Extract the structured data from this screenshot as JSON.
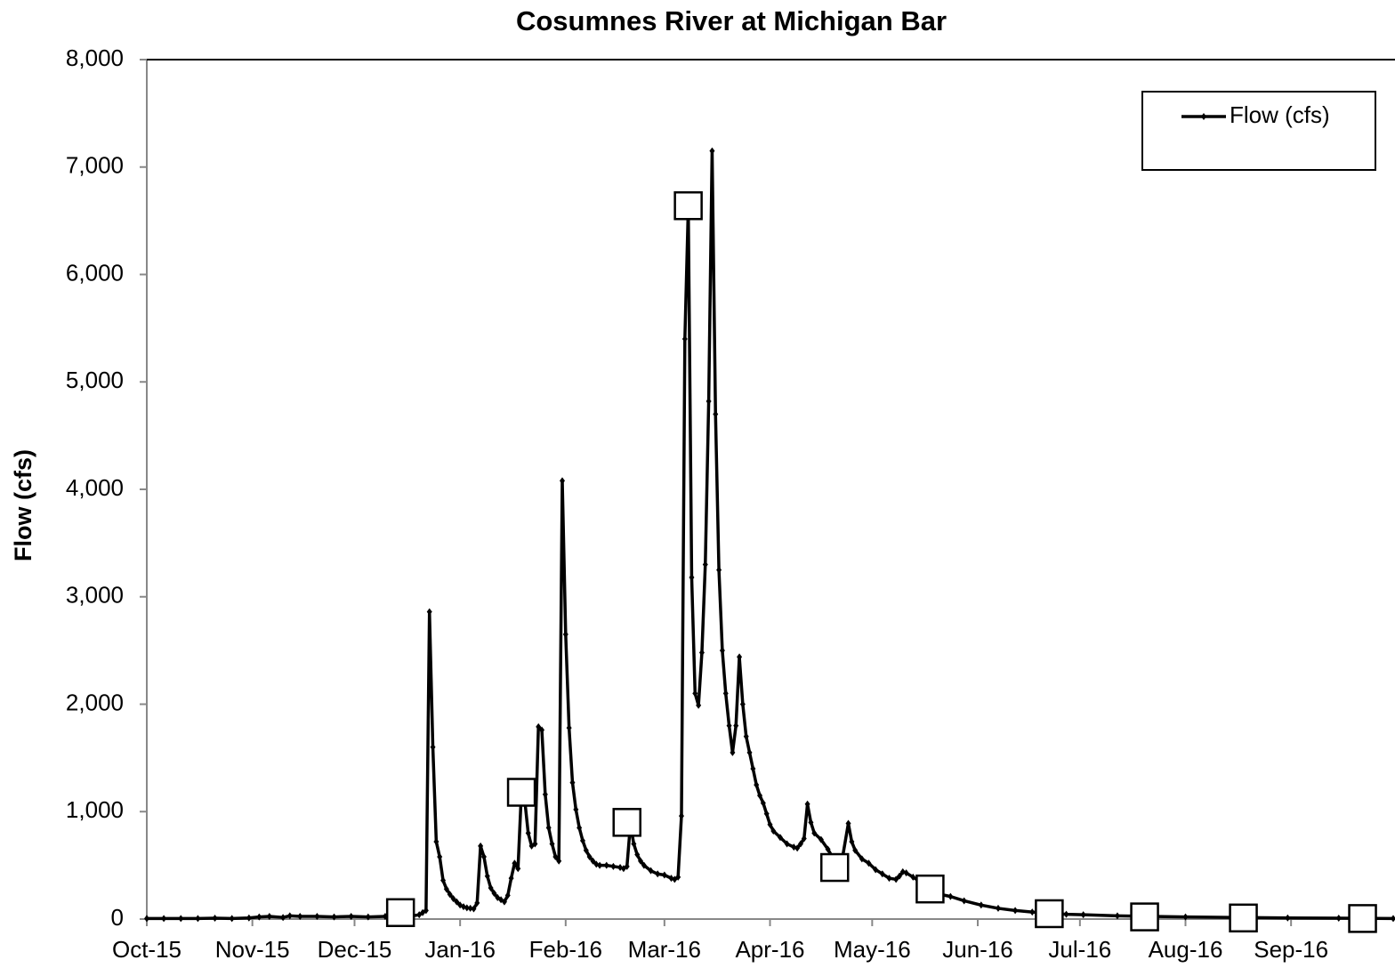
{
  "chart_data": {
    "type": "line",
    "title": "Cosumnes River at Michigan Bar",
    "y_label": "Flow (cfs)",
    "xlim": [
      0,
      366
    ],
    "xticks": [
      {
        "value": 0,
        "label": "Oct-15"
      },
      {
        "value": 31,
        "label": "Nov-15"
      },
      {
        "value": 61,
        "label": "Dec-15"
      },
      {
        "value": 92,
        "label": "Jan-16"
      },
      {
        "value": 123,
        "label": "Feb-16"
      },
      {
        "value": 152,
        "label": "Mar-16"
      },
      {
        "value": 183,
        "label": "Apr-16"
      },
      {
        "value": 213,
        "label": "May-16"
      },
      {
        "value": 244,
        "label": "Jun-16"
      },
      {
        "value": 274,
        "label": "Jul-16"
      },
      {
        "value": 305,
        "label": "Aug-16"
      },
      {
        "value": 336,
        "label": "Sep-16"
      }
    ],
    "ylim": [
      0,
      8000
    ],
    "yticks": [
      {
        "value": 0,
        "label": "0"
      },
      {
        "value": 1000,
        "label": "1,000"
      },
      {
        "value": 2000,
        "label": "2,000"
      },
      {
        "value": 3000,
        "label": "3,000"
      },
      {
        "value": 4000,
        "label": "4,000"
      },
      {
        "value": 5000,
        "label": "5,000"
      },
      {
        "value": 6000,
        "label": "6,000"
      },
      {
        "value": 7000,
        "label": "7,000"
      },
      {
        "value": 8000,
        "label": "8,000"
      }
    ],
    "legend": "upper right",
    "series": [
      {
        "name": "Flow (cfs)",
        "color": "#000000",
        "marker": "diamond",
        "x": [
          0,
          5,
          10,
          15,
          20,
          25,
          30,
          33,
          36,
          40,
          42,
          45,
          50,
          55,
          60,
          65,
          70,
          75,
          78,
          80,
          81,
          82,
          83,
          84,
          85,
          86,
          87,
          88,
          89,
          90,
          91,
          92,
          93,
          94,
          95,
          96,
          97,
          98,
          99,
          100,
          101,
          102,
          103,
          104,
          105,
          106,
          107,
          108,
          109,
          110,
          111,
          112,
          113,
          114,
          115,
          116,
          117,
          118,
          119,
          120,
          121,
          122,
          123,
          124,
          125,
          126,
          127,
          128,
          129,
          130,
          131,
          132,
          133,
          135,
          137,
          139,
          140,
          141,
          142,
          143,
          144,
          145,
          146,
          148,
          150,
          152,
          154,
          155,
          156,
          157,
          158,
          159,
          160,
          161,
          162,
          163,
          164,
          165,
          166,
          167,
          168,
          169,
          170,
          171,
          172,
          173,
          174,
          175,
          176,
          177,
          178,
          179,
          180,
          181,
          182,
          183,
          184,
          186,
          188,
          190,
          191,
          192,
          193,
          194,
          195,
          196,
          198,
          200,
          202,
          203,
          204,
          206,
          207,
          208,
          210,
          212,
          214,
          216,
          218,
          220,
          221,
          222,
          223,
          225,
          227,
          230,
          233,
          236,
          240,
          245,
          250,
          255,
          260,
          265,
          270,
          275,
          285,
          295,
          305,
          320,
          335,
          350,
          366
        ],
        "values": [
          5,
          5,
          5,
          5,
          8,
          5,
          10,
          20,
          25,
          15,
          30,
          25,
          25,
          20,
          25,
          20,
          25,
          30,
          30,
          40,
          60,
          80,
          2860,
          1600,
          720,
          580,
          360,
          280,
          230,
          190,
          160,
          130,
          115,
          105,
          100,
          95,
          150,
          680,
          580,
          400,
          290,
          240,
          200,
          180,
          160,
          220,
          380,
          520,
          470,
          1180,
          1100,
          800,
          680,
          700,
          1790,
          1760,
          1160,
          850,
          700,
          580,
          540,
          4080,
          2650,
          1780,
          1270,
          1020,
          850,
          730,
          640,
          580,
          540,
          510,
          500,
          500,
          490,
          480,
          470,
          490,
          880,
          700,
          600,
          540,
          500,
          450,
          420,
          410,
          380,
          370,
          390,
          960,
          5400,
          6620,
          3180,
          2100,
          1990,
          2480,
          3300,
          4820,
          7150,
          4700,
          3250,
          2500,
          2100,
          1800,
          1550,
          1800,
          2440,
          2000,
          1700,
          1550,
          1400,
          1250,
          1150,
          1080,
          980,
          880,
          820,
          760,
          700,
          670,
          660,
          700,
          750,
          1070,
          900,
          800,
          740,
          650,
          540,
          500,
          520,
          890,
          720,
          640,
          560,
          520,
          460,
          420,
          380,
          370,
          400,
          440,
          430,
          390,
          350,
          280,
          230,
          210,
          170,
          130,
          100,
          80,
          65,
          55,
          45,
          40,
          30,
          25,
          20,
          15,
          10,
          8,
          5
        ]
      },
      {
        "color": "#000000",
        "marker": "square",
        "x": [
          74.5,
          110,
          141,
          159,
          202,
          230,
          265,
          293,
          322,
          357
        ],
        "values": [
          60,
          1180,
          900,
          6640,
          480,
          280,
          50,
          20,
          10,
          5
        ]
      }
    ]
  }
}
